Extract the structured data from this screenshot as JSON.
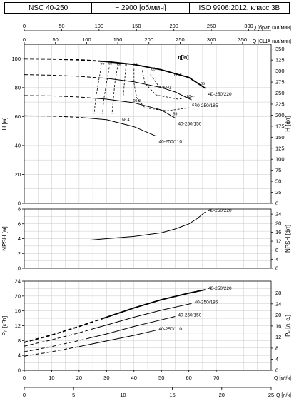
{
  "header": {
    "model": "NSC 40-250",
    "speed": "~ 2900 [об/мин]",
    "standard": "ISO 9906:2012, класс 3В"
  },
  "colors": {
    "line": "#000000",
    "grid": "#c8c8c8"
  },
  "chart_data": {
    "type": "line",
    "x_axes": {
      "top_imp": {
        "label": "Q [брит. гал/мин]",
        "ticks": [
          0,
          50,
          100,
          150,
          200,
          250,
          300
        ],
        "range": [
          0,
          330
        ]
      },
      "top_us": {
        "label": "Q [США гал/мин]",
        "ticks": [
          0,
          50,
          100,
          150,
          200,
          250,
          300,
          350
        ],
        "range": [
          0,
          396
        ]
      },
      "bottom_m3h": {
        "label": "Q [м³/ч]",
        "ticks": [
          0,
          10,
          20,
          30,
          40,
          50,
          60,
          70
        ],
        "range": [
          0,
          90
        ]
      },
      "bottom_ls": {
        "label": "Q [л/ч]",
        "ticks": [
          0,
          5,
          10,
          15,
          20,
          25
        ],
        "range": [
          0,
          25
        ]
      }
    },
    "panels": [
      {
        "id": "head",
        "ylabel_left": "H [м]",
        "ylabel_right": "H [фт]",
        "ylim": [
          0,
          110
        ],
        "yticks_left": [
          0,
          20,
          40,
          60,
          80,
          100
        ],
        "ylim_right": [
          0,
          360.9
        ],
        "yticks_right": [
          0,
          25,
          50,
          75,
          100,
          125,
          150,
          175,
          200,
          225,
          250,
          275,
          300,
          325,
          350
        ],
        "efficiency_label": "η[%]",
        "series": [
          {
            "name": "40-250/220",
            "bold": true,
            "dash_until": 28,
            "points": [
              [
                0,
                100
              ],
              [
                10,
                99.8
              ],
              [
                20,
                99.2
              ],
              [
                30,
                98
              ],
              [
                40,
                96
              ],
              [
                50,
                92.3
              ],
              [
                60,
                87
              ],
              [
                66,
                79.5
              ]
            ]
          },
          {
            "name": "40-250/185",
            "bold": false,
            "dash_until": 28,
            "points": [
              [
                0,
                89
              ],
              [
                10,
                88.6
              ],
              [
                20,
                87.8
              ],
              [
                30,
                86.4
              ],
              [
                40,
                84
              ],
              [
                50,
                80
              ],
              [
                55,
                77
              ],
              [
                61,
                71.5
              ]
            ]
          },
          {
            "name": "40-250/150",
            "bold": false,
            "dash_until": 25,
            "points": [
              [
                0,
                74.5
              ],
              [
                10,
                74.3
              ],
              [
                20,
                73.5
              ],
              [
                30,
                72
              ],
              [
                40,
                69.5
              ],
              [
                50,
                64.5
              ],
              [
                55,
                59
              ]
            ]
          },
          {
            "name": "40-250/110",
            "bold": false,
            "dash_until": 22,
            "points": [
              [
                0,
                60.5
              ],
              [
                10,
                60.3
              ],
              [
                20,
                59.5
              ],
              [
                30,
                57.8
              ],
              [
                40,
                53
              ],
              [
                48,
                46.5
              ]
            ]
          }
        ],
        "efficiency_curves": [
          {
            "label": "55",
            "points": [
              [
                28,
                94
              ],
              [
                27,
                83
              ],
              [
                26,
                72
              ],
              [
                25.5,
                62
              ]
            ]
          },
          {
            "label": "57",
            "points": [
              [
                31,
                94
              ],
              [
                30,
                83
              ],
              [
                29,
                72
              ],
              [
                28.5,
                62
              ]
            ]
          },
          {
            "label": "59",
            "points": [
              [
                34,
                94
              ],
              [
                33,
                83
              ],
              [
                32.5,
                72
              ],
              [
                32,
                62
              ]
            ]
          },
          {
            "label": "61",
            "points": [
              [
                37,
                93
              ],
              [
                36.5,
                83
              ],
              [
                36,
                72
              ],
              [
                36,
                62
              ]
            ]
          },
          {
            "label": "63",
            "points": [
              [
                40,
                93
              ],
              [
                40,
                83
              ],
              [
                41,
                73
              ],
              [
                44,
                66
              ],
              [
                52,
                64
              ],
              [
                60,
                66
              ]
            ]
          },
          {
            "label": "65",
            "points": [
              [
                43,
                92
              ],
              [
                44,
                83
              ],
              [
                48,
                75
              ],
              [
                56,
                72
              ],
              [
                62,
                74
              ]
            ]
          },
          {
            "label": "65.0",
            "points": [
              [
                46,
                89
              ],
              [
                49,
                81
              ],
              [
                54,
                79
              ]
            ]
          }
        ],
        "annotations": [
          {
            "text": "55",
            "x": 28.5,
            "y": 96
          },
          {
            "text": "57",
            "x": 31.5,
            "y": 96
          },
          {
            "text": "59",
            "x": 34.5,
            "y": 95
          },
          {
            "text": "61",
            "x": 37.5,
            "y": 95
          },
          {
            "text": "63",
            "x": 40.5,
            "y": 95
          },
          {
            "text": "65",
            "x": 47,
            "y": 92
          },
          {
            "text": "66.6",
            "x": 56,
            "y": 88
          },
          {
            "text": "65",
            "x": 65,
            "y": 82
          },
          {
            "text": "65.0",
            "x": 52,
            "y": 79.5
          },
          {
            "text": "63",
            "x": 60,
            "y": 73
          },
          {
            "text": "61",
            "x": 62,
            "y": 67
          },
          {
            "text": "60.8",
            "x": 41,
            "y": 70
          },
          {
            "text": "59",
            "x": 55,
            "y": 61
          },
          {
            "text": "58.4",
            "x": 37,
            "y": 57
          }
        ]
      },
      {
        "id": "npsh",
        "ylabel_left": "NPSH [м]",
        "ylabel_right": "NPSH [фт]",
        "ylim": [
          0,
          8
        ],
        "yticks_left": [
          0,
          2,
          4,
          6,
          8
        ],
        "ylim_right": [
          0,
          26.25
        ],
        "yticks_right": [
          0,
          4,
          8,
          12,
          16,
          20,
          24
        ],
        "series": [
          {
            "name": "40-250/220",
            "bold": false,
            "dash_until": 0,
            "points": [
              [
                24,
                3.8
              ],
              [
                30,
                4.0
              ],
              [
                40,
                4.3
              ],
              [
                50,
                4.8
              ],
              [
                55,
                5.3
              ],
              [
                60,
                6.0
              ],
              [
                63,
                6.7
              ],
              [
                66,
                7.6
              ]
            ]
          }
        ]
      },
      {
        "id": "power",
        "ylabel_left": "Pₚ [кВт]",
        "ylabel_right": "Pₚ [л. с.]",
        "ylim": [
          0,
          24
        ],
        "yticks_left": [
          0,
          4,
          8,
          12,
          16,
          20,
          24
        ],
        "ylim_right": [
          0,
          32.2
        ],
        "yticks_right": [
          0,
          4,
          8,
          12,
          16,
          20,
          24,
          28
        ],
        "series": [
          {
            "name": "40-250/220",
            "bold": true,
            "dash_until": 28,
            "points": [
              [
                0,
                7.5
              ],
              [
                10,
                9.5
              ],
              [
                20,
                11.8
              ],
              [
                30,
                14.3
              ],
              [
                40,
                16.8
              ],
              [
                50,
                19
              ],
              [
                60,
                20.8
              ],
              [
                66,
                21.7
              ]
            ]
          },
          {
            "name": "40-250/185",
            "bold": false,
            "dash_until": 25,
            "points": [
              [
                0,
                6.5
              ],
              [
                10,
                8.2
              ],
              [
                20,
                10.1
              ],
              [
                30,
                12.2
              ],
              [
                40,
                14.3
              ],
              [
                50,
                16.2
              ],
              [
                61,
                18
              ]
            ]
          },
          {
            "name": "40-250/150",
            "bold": false,
            "dash_until": 23,
            "points": [
              [
                0,
                5
              ],
              [
                10,
                6.4
              ],
              [
                20,
                8
              ],
              [
                30,
                9.8
              ],
              [
                40,
                11.8
              ],
              [
                50,
                13.6
              ],
              [
                55,
                14.5
              ]
            ]
          },
          {
            "name": "40-250/110",
            "bold": false,
            "dash_until": 20,
            "points": [
              [
                0,
                3.8
              ],
              [
                10,
                5
              ],
              [
                20,
                6.4
              ],
              [
                30,
                7.9
              ],
              [
                40,
                9.4
              ],
              [
                48,
                10.8
              ]
            ]
          }
        ]
      }
    ]
  }
}
